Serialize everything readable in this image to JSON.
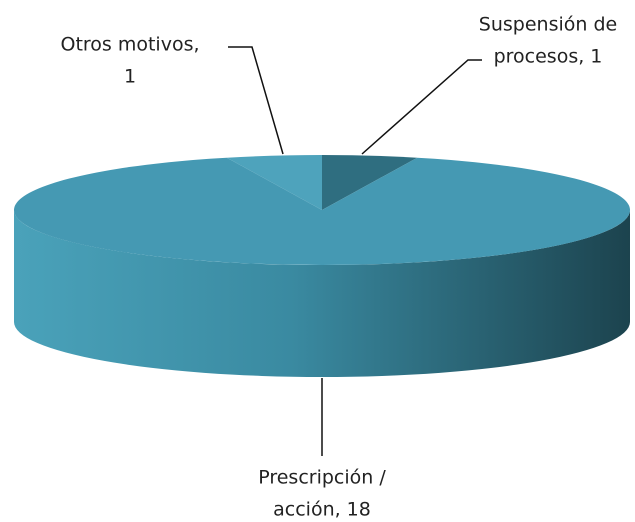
{
  "chart_data": {
    "type": "pie3d",
    "labels": [
      [
        "Suspensión de",
        "procesos, 1"
      ],
      [
        "Prescripción /",
        "acción, 18"
      ],
      [
        "Otros motivos,",
        "1"
      ]
    ],
    "values": [
      1,
      18,
      1
    ],
    "colors": [
      "#2f6e80",
      "#4599b3",
      "#4ea3bc"
    ]
  }
}
